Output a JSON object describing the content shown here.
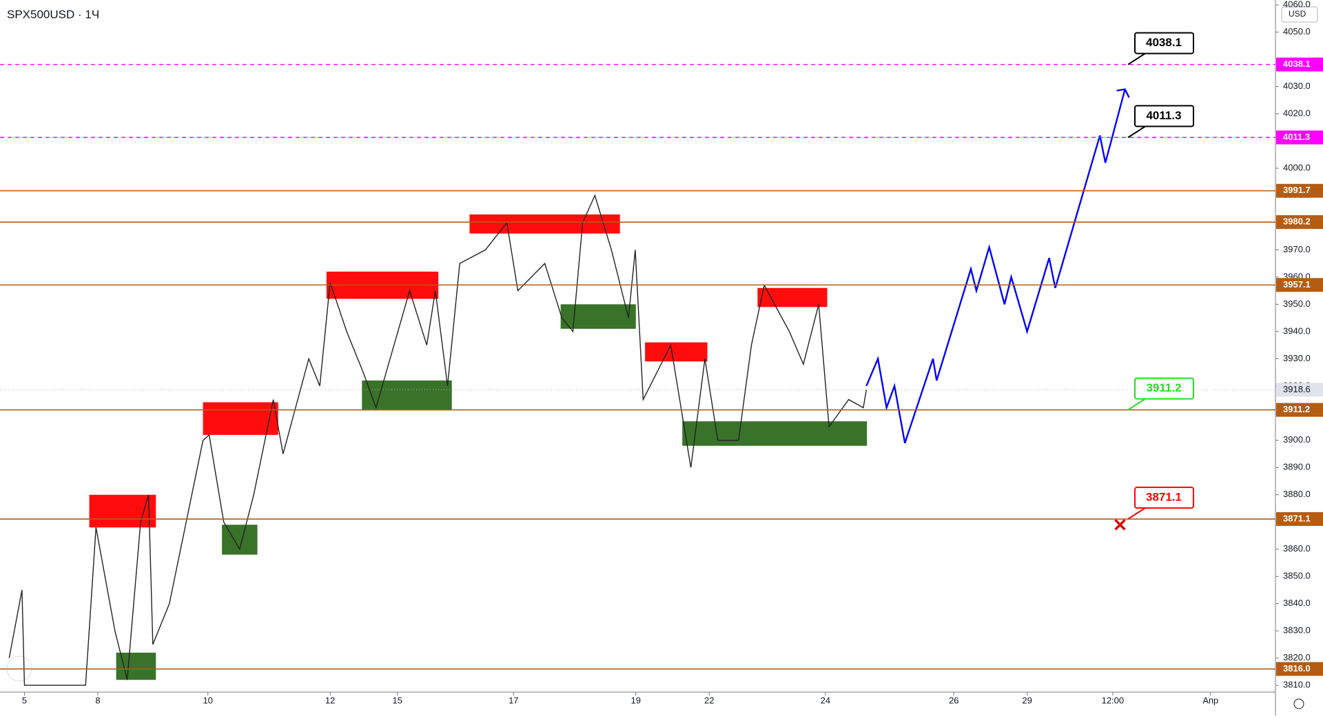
{
  "chart_data": {
    "type": "line",
    "title": "SPX500USD · 1Ч",
    "currency": "USD",
    "xlim": [
      -0.4,
      20.45
    ],
    "ylim": [
      3807.5,
      4061.8
    ],
    "xticks": [
      {
        "value": 0,
        "label": "5"
      },
      {
        "value": 1.2,
        "label": "8"
      },
      {
        "value": 3,
        "label": "10"
      },
      {
        "value": 5,
        "label": "12"
      },
      {
        "value": 6.1,
        "label": "15"
      },
      {
        "value": 8,
        "label": "17"
      },
      {
        "value": 10,
        "label": "19"
      },
      {
        "value": 11.2,
        "label": "22"
      },
      {
        "value": 13.1,
        "label": "24"
      },
      {
        "value": 15.2,
        "label": "26"
      },
      {
        "value": 16.4,
        "label": "29"
      },
      {
        "value": 17.8,
        "label": "12:00"
      },
      {
        "value": 19.4,
        "label": "Апр"
      }
    ],
    "yticks": [
      {
        "value": 3810,
        "label": "3810.0"
      },
      {
        "value": 3820,
        "label": "3820.0"
      },
      {
        "value": 3830,
        "label": "3830.0"
      },
      {
        "value": 3840,
        "label": "3840.0"
      },
      {
        "value": 3850,
        "label": "3850.0"
      },
      {
        "value": 3860,
        "label": "3860.0"
      },
      {
        "value": 3870,
        "label": "3870.0"
      },
      {
        "value": 3880,
        "label": "3880.0"
      },
      {
        "value": 3890,
        "label": "3890.0"
      },
      {
        "value": 3900,
        "label": "3900.0"
      },
      {
        "value": 3910,
        "label": "3910.0"
      },
      {
        "value": 3920,
        "label": "3920.0"
      },
      {
        "value": 3930,
        "label": "3930.0"
      },
      {
        "value": 3940,
        "label": "3940.0"
      },
      {
        "value": 3950,
        "label": "3950.0"
      },
      {
        "value": 3960,
        "label": "3960.0"
      },
      {
        "value": 3970,
        "label": "3970.0"
      },
      {
        "value": 3980,
        "label": "3980.0"
      },
      {
        "value": 3990,
        "label": "3990.0"
      },
      {
        "value": 4000,
        "label": "4000.0"
      },
      {
        "value": 4020,
        "label": "4020.0"
      },
      {
        "value": 4030,
        "label": "4030.0"
      },
      {
        "value": 4050,
        "label": "4050.0"
      },
      {
        "value": 4060,
        "label": "4060.0"
      }
    ],
    "levels": [
      {
        "value": 4038.1,
        "label": "4038.1",
        "color": "#ff00ff",
        "dashed": true,
        "callout": "#000000"
      },
      {
        "value": 4011.3,
        "label": "4011.3",
        "color": "#ff00ff",
        "dashed": true,
        "callout": "#000000"
      },
      {
        "value": 3991.7,
        "label": "3991.7",
        "color": "#b35c12",
        "dashed": false
      },
      {
        "value": 3980.2,
        "label": "3980.2",
        "color": "#b35c12",
        "dashed": false
      },
      {
        "value": 3957.1,
        "label": "3957.1",
        "color": "#b35c12",
        "dashed": false
      },
      {
        "value": 3911.2,
        "label": "3911.2",
        "color": "#b35c12",
        "dashed": false,
        "callout": "#22dd22"
      },
      {
        "value": 3871.1,
        "label": "3871.1",
        "color": "#b35c12",
        "dashed": false,
        "callout": "#ff0000"
      },
      {
        "value": 3816.0,
        "label": "3816.0",
        "color": "#b35c12",
        "dashed": false
      }
    ],
    "last_price": {
      "value": 3918.6,
      "label": "3918.6"
    },
    "zones": [
      {
        "x0": 1.06,
        "x1": 2.15,
        "low": 3868,
        "high": 3880,
        "color": "#ff0000"
      },
      {
        "x0": 1.5,
        "x1": 2.15,
        "low": 3812,
        "high": 3822,
        "color": "#2e6b1e"
      },
      {
        "x0": 2.92,
        "x1": 4.15,
        "low": 3902,
        "high": 3914,
        "color": "#ff0000"
      },
      {
        "x0": 3.23,
        "x1": 3.81,
        "low": 3858,
        "high": 3869,
        "color": "#2e6b1e"
      },
      {
        "x0": 4.94,
        "x1": 6.77,
        "low": 3952,
        "high": 3962,
        "color": "#ff0000"
      },
      {
        "x0": 5.52,
        "x1": 6.99,
        "low": 3911,
        "high": 3922,
        "color": "#2e6b1e"
      },
      {
        "x0": 7.28,
        "x1": 9.74,
        "low": 3976,
        "high": 3983,
        "color": "#ff0000"
      },
      {
        "x0": 8.77,
        "x1": 10.0,
        "low": 3941,
        "high": 3950,
        "color": "#2e6b1e"
      },
      {
        "x0": 10.15,
        "x1": 11.17,
        "low": 3929,
        "high": 3936,
        "color": "#ff0000"
      },
      {
        "x0": 10.76,
        "x1": 13.78,
        "low": 3898,
        "high": 3907,
        "color": "#2e6b1e"
      },
      {
        "x0": 11.99,
        "x1": 13.13,
        "low": 3949,
        "high": 3956,
        "color": "#ff0000"
      }
    ],
    "series": [
      {
        "color": "#222222",
        "x": [
          -0.25,
          -0.04,
          0,
          1.0,
          1.17,
          1.48,
          1.68,
          1.9,
          2.03,
          2.1,
          2.37,
          2.92,
          3.02,
          3.26,
          3.52,
          3.75,
          4.07,
          4.23,
          4.65,
          4.83,
          5.0,
          5.27,
          5.54,
          5.75,
          6.3,
          6.58,
          6.72,
          6.92,
          7.12,
          7.54,
          7.89,
          8.07,
          8.51,
          8.79,
          8.97,
          9.13,
          9.33,
          9.6,
          9.88,
          9.99,
          10.12,
          10.57,
          10.9,
          11.13,
          11.34,
          11.68,
          11.89,
          12.1,
          12.51,
          12.74,
          12.99,
          13.16,
          13.48,
          13.72,
          13.77
        ],
        "values": [
          3820,
          3845,
          3810,
          3810,
          3868,
          3830,
          3812,
          3870,
          3880,
          3825,
          3840,
          3900,
          3902,
          3870,
          3860,
          3880,
          3915,
          3895,
          3930,
          3920,
          3958,
          3940,
          3925,
          3912,
          3955,
          3935,
          3955,
          3920,
          3965,
          3970,
          3980,
          3955,
          3965,
          3945,
          3940,
          3980,
          3990,
          3970,
          3945,
          3970,
          3915,
          3935,
          3890,
          3930,
          3900,
          3900,
          3935,
          3957,
          3940,
          3928,
          3950,
          3905,
          3915,
          3912,
          3918.6
        ]
      },
      {
        "color": "#0000ff",
        "arrow": true,
        "x": [
          13.77,
          13.96,
          14.1,
          14.23,
          14.4,
          14.86,
          14.92,
          15.48,
          15.57,
          15.78,
          16.03,
          16.14,
          16.4,
          16.76,
          16.86,
          17.59,
          17.68,
          18.0
        ],
        "values": [
          3920,
          3930,
          3912,
          3920,
          3899,
          3930,
          3922,
          3963,
          3955,
          3971,
          3950,
          3960,
          3940,
          3967,
          3956,
          4012,
          4002,
          4029
        ]
      }
    ],
    "stop_marker": {
      "x": 17.92,
      "value": 3869
    }
  }
}
